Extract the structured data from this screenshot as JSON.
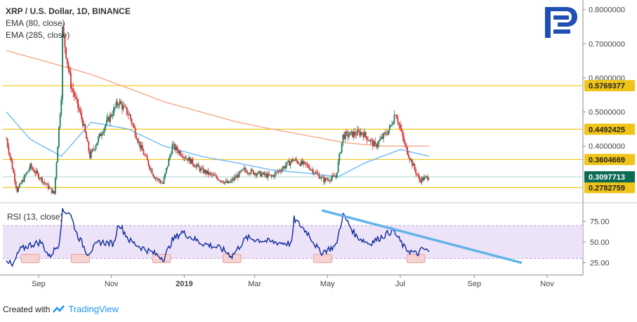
{
  "legend": {
    "title": "XRP / U.S. Dollar, 1D, BINANCE",
    "ema80": "EMA (80, close)",
    "ema285": "EMA (285, close)"
  },
  "rsi_label": "RSI (13, close)",
  "footer": {
    "created_with": "Created with",
    "brand": "TradingView"
  },
  "logo_icon": "r-brand-logo-icon",
  "colors": {
    "up": "#26a69a",
    "down": "#ef5350",
    "candle_up": "#1b7a5a",
    "candle_down": "#d32f2f",
    "ema80": "#64b5f6",
    "ema285": "#f4a582",
    "level": "#f0c419",
    "current": "#0b6a53",
    "rsi": "#0d2a9c",
    "rsi_band": "#e6d7f5",
    "trend": "#63b3e8"
  },
  "chart_data": [
    {
      "type": "candlestick",
      "title": "XRP / U.S. Dollar, 1D, BINANCE",
      "x_ticks": [
        "Sep",
        "Nov",
        "2019",
        "Mar",
        "May",
        "Jul",
        "Sep",
        "Nov"
      ],
      "y_ticks": [
        "0.8000000",
        "0.7000000",
        "0.6000000",
        "0.5000000",
        "0.4000000"
      ],
      "ylim": [
        0.24,
        0.82
      ],
      "horizontal_levels": [
        "0.5769377",
        "0.4492425",
        "0.3604669",
        "0.2782759"
      ],
      "current_price": "0.3097713",
      "approx_price_path": [
        {
          "d": "2018-08-05",
          "v": 0.42
        },
        {
          "d": "2018-08-14",
          "v": 0.27
        },
        {
          "d": "2018-08-25",
          "v": 0.34
        },
        {
          "d": "2018-09-14",
          "v": 0.26
        },
        {
          "d": "2018-09-20",
          "v": 0.55
        },
        {
          "d": "2018-09-21",
          "v": 0.74
        },
        {
          "d": "2018-09-28",
          "v": 0.58
        },
        {
          "d": "2018-10-08",
          "v": 0.47
        },
        {
          "d": "2018-10-14",
          "v": 0.37
        },
        {
          "d": "2018-10-25",
          "v": 0.45
        },
        {
          "d": "2018-11-07",
          "v": 0.53
        },
        {
          "d": "2018-11-16",
          "v": 0.49
        },
        {
          "d": "2018-11-25",
          "v": 0.4
        },
        {
          "d": "2018-12-07",
          "v": 0.31
        },
        {
          "d": "2018-12-14",
          "v": 0.29
        },
        {
          "d": "2018-12-22",
          "v": 0.4
        },
        {
          "d": "2019-01-05",
          "v": 0.36
        },
        {
          "d": "2019-01-15",
          "v": 0.33
        },
        {
          "d": "2019-02-07",
          "v": 0.29
        },
        {
          "d": "2019-02-20",
          "v": 0.33
        },
        {
          "d": "2019-03-15",
          "v": 0.31
        },
        {
          "d": "2019-04-02",
          "v": 0.36
        },
        {
          "d": "2019-04-15",
          "v": 0.34
        },
        {
          "d": "2019-04-28",
          "v": 0.3
        },
        {
          "d": "2019-05-08",
          "v": 0.31
        },
        {
          "d": "2019-05-14",
          "v": 0.43
        },
        {
          "d": "2019-05-30",
          "v": 0.44
        },
        {
          "d": "2019-06-10",
          "v": 0.4
        },
        {
          "d": "2019-06-22",
          "v": 0.45
        },
        {
          "d": "2019-06-27",
          "v": 0.5
        },
        {
          "d": "2019-07-05",
          "v": 0.4
        },
        {
          "d": "2019-07-12",
          "v": 0.34
        },
        {
          "d": "2019-07-17",
          "v": 0.3
        },
        {
          "d": "2019-07-25",
          "v": 0.31
        }
      ],
      "ema80_path": [
        {
          "d": "2018-08-05",
          "v": 0.5
        },
        {
          "d": "2018-08-25",
          "v": 0.42
        },
        {
          "d": "2018-09-20",
          "v": 0.37
        },
        {
          "d": "2018-10-15",
          "v": 0.47
        },
        {
          "d": "2018-11-15",
          "v": 0.45
        },
        {
          "d": "2018-12-15",
          "v": 0.4
        },
        {
          "d": "2019-01-15",
          "v": 0.37
        },
        {
          "d": "2019-02-15",
          "v": 0.35
        },
        {
          "d": "2019-03-15",
          "v": 0.33
        },
        {
          "d": "2019-04-15",
          "v": 0.32
        },
        {
          "d": "2019-05-10",
          "v": 0.31
        },
        {
          "d": "2019-06-01",
          "v": 0.35
        },
        {
          "d": "2019-07-01",
          "v": 0.39
        },
        {
          "d": "2019-07-25",
          "v": 0.37
        }
      ],
      "ema285_path": [
        {
          "d": "2018-08-05",
          "v": 0.68
        },
        {
          "d": "2018-09-15",
          "v": 0.64
        },
        {
          "d": "2018-10-15",
          "v": 0.61
        },
        {
          "d": "2018-11-15",
          "v": 0.57
        },
        {
          "d": "2018-12-15",
          "v": 0.53
        },
        {
          "d": "2019-01-15",
          "v": 0.5
        },
        {
          "d": "2019-02-15",
          "v": 0.47
        },
        {
          "d": "2019-03-15",
          "v": 0.45
        },
        {
          "d": "2019-04-15",
          "v": 0.43
        },
        {
          "d": "2019-05-15",
          "v": 0.41
        },
        {
          "d": "2019-06-15",
          "v": 0.4
        },
        {
          "d": "2019-07-25",
          "v": 0.4
        }
      ]
    },
    {
      "type": "line",
      "title": "RSI (13, close)",
      "y_ticks": [
        "75.00",
        "50.00",
        "25.00"
      ],
      "ylim": [
        10,
        95
      ],
      "band": [
        30,
        70
      ],
      "rsi_path": [
        {
          "d": "2018-08-05",
          "v": 30
        },
        {
          "d": "2018-08-10",
          "v": 20
        },
        {
          "d": "2018-08-16",
          "v": 40
        },
        {
          "d": "2018-08-24",
          "v": 46
        },
        {
          "d": "2018-09-03",
          "v": 50
        },
        {
          "d": "2018-09-10",
          "v": 32
        },
        {
          "d": "2018-09-18",
          "v": 48
        },
        {
          "d": "2018-09-21",
          "v": 87
        },
        {
          "d": "2018-09-27",
          "v": 86
        },
        {
          "d": "2018-10-03",
          "v": 60
        },
        {
          "d": "2018-10-12",
          "v": 36
        },
        {
          "d": "2018-10-22",
          "v": 50
        },
        {
          "d": "2018-11-03",
          "v": 48
        },
        {
          "d": "2018-11-07",
          "v": 73
        },
        {
          "d": "2018-11-16",
          "v": 52
        },
        {
          "d": "2018-11-25",
          "v": 44
        },
        {
          "d": "2018-12-07",
          "v": 36
        },
        {
          "d": "2018-12-15",
          "v": 30
        },
        {
          "d": "2018-12-22",
          "v": 52
        },
        {
          "d": "2018-12-30",
          "v": 62
        },
        {
          "d": "2019-01-15",
          "v": 49
        },
        {
          "d": "2019-02-01",
          "v": 42
        },
        {
          "d": "2019-02-10",
          "v": 33
        },
        {
          "d": "2019-02-22",
          "v": 55
        },
        {
          "d": "2019-03-15",
          "v": 50
        },
        {
          "d": "2019-04-01",
          "v": 48
        },
        {
          "d": "2019-04-03",
          "v": 78
        },
        {
          "d": "2019-04-15",
          "v": 60
        },
        {
          "d": "2019-04-25",
          "v": 37
        },
        {
          "d": "2019-05-08",
          "v": 45
        },
        {
          "d": "2019-05-14",
          "v": 83
        },
        {
          "d": "2019-05-25",
          "v": 57
        },
        {
          "d": "2019-06-05",
          "v": 48
        },
        {
          "d": "2019-06-15",
          "v": 56
        },
        {
          "d": "2019-06-25",
          "v": 64
        },
        {
          "d": "2019-07-05",
          "v": 42
        },
        {
          "d": "2019-07-15",
          "v": 35
        },
        {
          "d": "2019-07-20",
          "v": 42
        },
        {
          "d": "2019-07-25",
          "v": 38
        }
      ],
      "oversold_markers": [
        "2018-08-25",
        "2018-10-06",
        "2018-12-13",
        "2019-02-10",
        "2019-04-27",
        "2019-07-14"
      ],
      "trend_line": [
        {
          "d": "2019-04-27",
          "v": 88
        },
        {
          "d": "2019-10-10",
          "v": 25
        }
      ]
    }
  ]
}
